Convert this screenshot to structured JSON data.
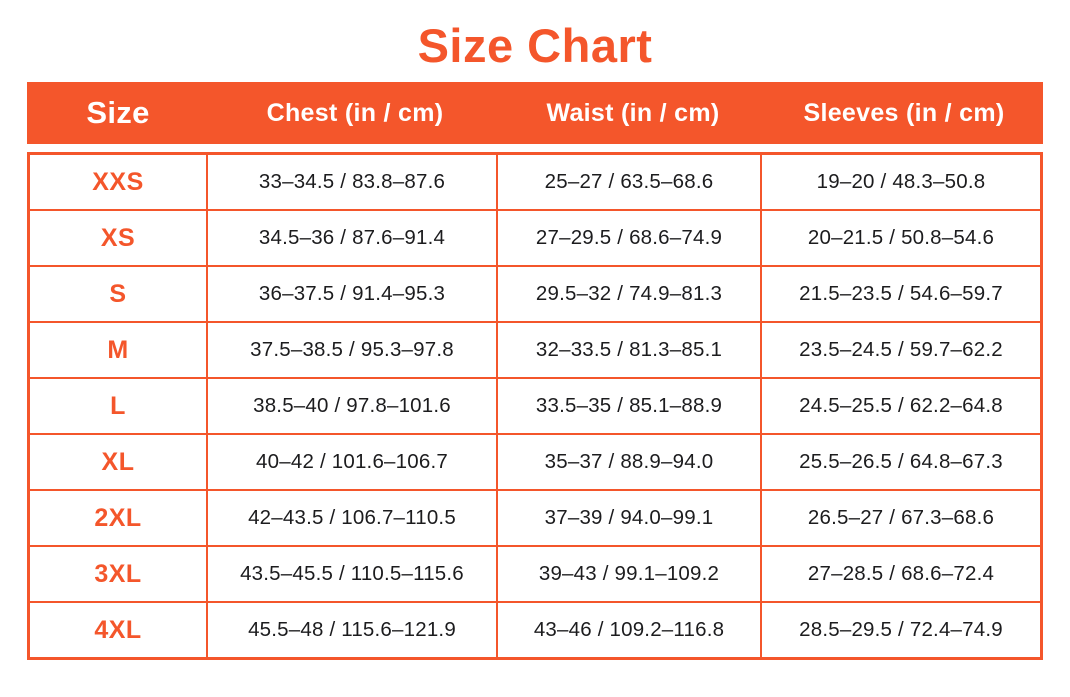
{
  "title": "Size Chart",
  "colors": {
    "accent_orange": "#F4562B",
    "header_text": "#FFFFFF",
    "body_text": "#1C1C1E",
    "background": "#FFFFFF"
  },
  "chart_data": {
    "type": "table",
    "title": "Size Chart",
    "columns": [
      "Size",
      "Chest (in / cm)",
      "Waist (in / cm)",
      "Sleeves (in / cm)"
    ],
    "rows": [
      {
        "size": "XXS",
        "chest": "33–34.5 / 83.8–87.6",
        "waist": "25–27 / 63.5–68.6",
        "sleeves": "19–20 / 48.3–50.8"
      },
      {
        "size": "XS",
        "chest": "34.5–36 / 87.6–91.4",
        "waist": "27–29.5 / 68.6–74.9",
        "sleeves": "20–21.5 / 50.8–54.6"
      },
      {
        "size": "S",
        "chest": "36–37.5 / 91.4–95.3",
        "waist": "29.5–32 / 74.9–81.3",
        "sleeves": "21.5–23.5 / 54.6–59.7"
      },
      {
        "size": "M",
        "chest": "37.5–38.5 / 95.3–97.8",
        "waist": "32–33.5 / 81.3–85.1",
        "sleeves": "23.5–24.5 / 59.7–62.2"
      },
      {
        "size": "L",
        "chest": "38.5–40 / 97.8–101.6",
        "waist": "33.5–35 / 85.1–88.9",
        "sleeves": "24.5–25.5 / 62.2–64.8"
      },
      {
        "size": "XL",
        "chest": "40–42 / 101.6–106.7",
        "waist": "35–37 / 88.9–94.0",
        "sleeves": "25.5–26.5 / 64.8–67.3"
      },
      {
        "size": "2XL",
        "chest": "42–43.5 / 106.7–110.5",
        "waist": "37–39 / 94.0–99.1",
        "sleeves": "26.5–27 / 67.3–68.6"
      },
      {
        "size": "3XL",
        "chest": "43.5–45.5 / 110.5–115.6",
        "waist": "39–43 / 99.1–109.2",
        "sleeves": "27–28.5 / 68.6–72.4"
      },
      {
        "size": "4XL",
        "chest": "45.5–48 / 115.6–121.9",
        "waist": "43–46 / 109.2–116.8",
        "sleeves": "28.5–29.5 / 72.4–74.9"
      }
    ]
  }
}
